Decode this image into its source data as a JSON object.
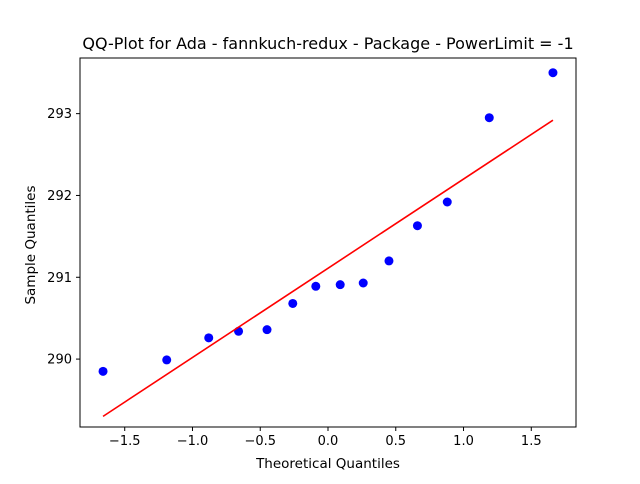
{
  "chart_data": {
    "type": "scatter",
    "title": "QQ-Plot for Ada - fannkuch-redux - Package - PowerLimit = -1",
    "xlabel": "Theoretical Quantiles",
    "ylabel": "Sample Quantiles",
    "xlim": [
      -1.83,
      1.83
    ],
    "ylim": [
      289.17,
      293.68
    ],
    "xticks": [
      -1.5,
      -1.0,
      -0.5,
      0.0,
      0.5,
      1.0,
      1.5
    ],
    "xtick_labels": [
      "−1.5",
      "−1.0",
      "−0.5",
      "0.0",
      "0.5",
      "1.0",
      "1.5"
    ],
    "yticks": [
      290,
      291,
      292,
      293
    ],
    "ytick_labels": [
      "290",
      "291",
      "292",
      "293"
    ],
    "grid": false,
    "series": [
      {
        "kind": "points",
        "color": "#0000ff",
        "x": [
          -1.66,
          -1.19,
          -0.88,
          -0.66,
          -0.45,
          -0.26,
          -0.09,
          0.09,
          0.26,
          0.45,
          0.66,
          0.88,
          1.19,
          1.66
        ],
        "y": [
          289.85,
          289.99,
          290.26,
          290.34,
          290.36,
          290.68,
          290.89,
          290.91,
          290.93,
          291.2,
          291.63,
          291.92,
          292.95,
          293.5
        ]
      },
      {
        "kind": "reference-line",
        "color": "#ff0000",
        "x": [
          -1.66,
          1.66
        ],
        "y": [
          289.3,
          292.92
        ]
      }
    ]
  }
}
